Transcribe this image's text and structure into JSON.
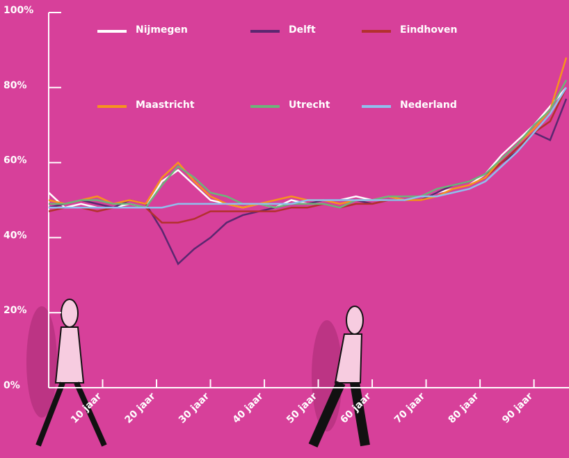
{
  "chart_data": {
    "type": "line",
    "x": [
      0,
      3,
      6,
      9,
      12,
      15,
      18,
      21,
      24,
      27,
      30,
      33,
      36,
      39,
      42,
      45,
      48,
      51,
      54,
      57,
      60,
      63,
      66,
      69,
      72,
      75,
      78,
      81,
      84,
      87,
      90,
      93,
      96
    ],
    "series": [
      {
        "name": "Nijmegen",
        "color": "#ffffff",
        "values": [
          52,
          48,
          49,
          48,
          48,
          49,
          48,
          55,
          58,
          54,
          50,
          49,
          48,
          49,
          48,
          50,
          49,
          50,
          50,
          51,
          50,
          51,
          50,
          50,
          52,
          53,
          54,
          57,
          62,
          66,
          70,
          75,
          80
        ]
      },
      {
        "name": "Delft",
        "color": "#5b2770",
        "values": [
          48,
          49,
          50,
          49,
          48,
          50,
          49,
          42,
          33,
          37,
          40,
          44,
          46,
          47,
          48,
          49,
          49,
          50,
          50,
          50,
          49,
          50,
          50,
          50,
          52,
          54,
          55,
          57,
          60,
          63,
          68,
          66,
          77
        ]
      },
      {
        "name": "Eindhoven",
        "color": "#b3302e",
        "values": [
          47,
          48,
          48,
          47,
          48,
          48,
          48,
          44,
          44,
          45,
          47,
          47,
          47,
          47,
          47,
          48,
          48,
          49,
          48,
          49,
          49,
          50,
          50,
          50,
          51,
          53,
          54,
          56,
          60,
          64,
          68,
          71,
          80
        ]
      },
      {
        "name": "Maastricht",
        "color": "#f7931e",
        "values": [
          50,
          49,
          50,
          51,
          49,
          50,
          49,
          56,
          60,
          55,
          51,
          49,
          48,
          49,
          50,
          51,
          50,
          50,
          49,
          50,
          50,
          51,
          50,
          50,
          51,
          53,
          54,
          56,
          61,
          65,
          69,
          74,
          88
        ]
      },
      {
        "name": "Utrecht",
        "color": "#6db47a",
        "values": [
          49,
          49,
          50,
          50,
          49,
          49,
          48,
          54,
          59,
          56,
          52,
          51,
          49,
          49,
          48,
          49,
          49,
          49,
          48,
          50,
          50,
          51,
          51,
          51,
          53,
          54,
          55,
          57,
          61,
          65,
          70,
          74,
          82
        ]
      },
      {
        "name": "Nederland",
        "color": "#8fc0ee",
        "values": [
          48,
          48,
          48,
          48,
          48,
          48,
          48,
          48,
          49,
          49,
          49,
          49,
          49,
          49,
          49,
          49,
          50,
          50,
          50,
          50,
          50,
          50,
          50,
          51,
          51,
          52,
          53,
          55,
          59,
          63,
          68,
          73,
          80
        ]
      }
    ],
    "xlim": [
      0,
      96.5
    ],
    "ylim": [
      0,
      100
    ],
    "xticks": [
      {
        "value": 10,
        "label": "10 jaar"
      },
      {
        "value": 20,
        "label": "20 jaar"
      },
      {
        "value": 30,
        "label": "30 jaar"
      },
      {
        "value": 40,
        "label": "40 jaar"
      },
      {
        "value": 50,
        "label": "50 jaar"
      },
      {
        "value": 60,
        "label": "60 jaar"
      },
      {
        "value": 70,
        "label": "70 jaar"
      },
      {
        "value": 80,
        "label": "80 jaar"
      },
      {
        "value": 90,
        "label": "90 jaar"
      }
    ],
    "yticks": [
      {
        "value": 0,
        "label": "0%"
      },
      {
        "value": 20,
        "label": "20%"
      },
      {
        "value": 40,
        "label": "40%"
      },
      {
        "value": 60,
        "label": "60%"
      },
      {
        "value": 80,
        "label": "80%"
      },
      {
        "value": 100,
        "label": "100%"
      }
    ]
  }
}
